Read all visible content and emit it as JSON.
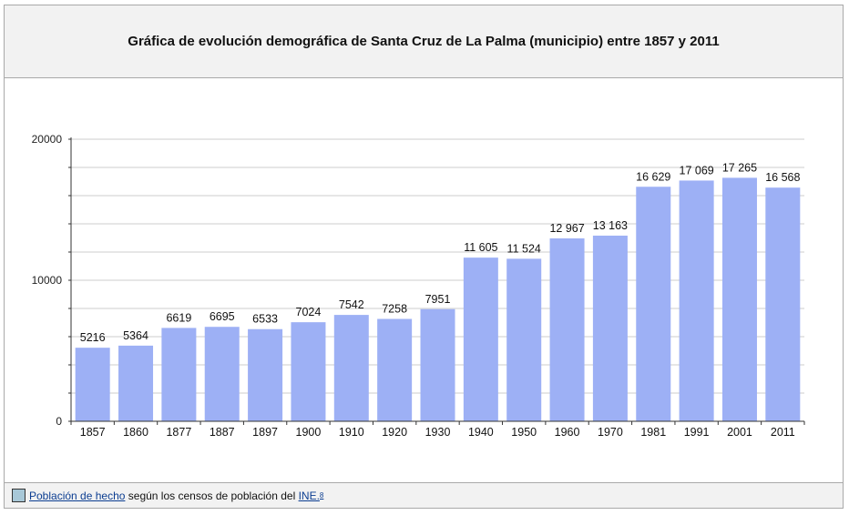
{
  "chart_data": {
    "type": "bar",
    "title": "Gráfica de evolución demográfica de Santa Cruz de La Palma (municipio) entre 1857 y 2011",
    "categories": [
      "1857",
      "1860",
      "1877",
      "1887",
      "1897",
      "1900",
      "1910",
      "1920",
      "1930",
      "1940",
      "1950",
      "1960",
      "1970",
      "1981",
      "1991",
      "2001",
      "2011"
    ],
    "values": [
      5216,
      5364,
      6619,
      6695,
      6533,
      7024,
      7542,
      7258,
      7951,
      11605,
      11524,
      12967,
      13163,
      16629,
      17069,
      17265,
      16568
    ],
    "value_labels": [
      "5216",
      "5364",
      "6619",
      "6695",
      "6533",
      "7024",
      "7542",
      "7258",
      "7951",
      "11 605",
      "11 524",
      "12 967",
      "13 163",
      "16 629",
      "17 069",
      "17 265",
      "16 568"
    ],
    "ylim": [
      0,
      20000
    ],
    "y_ticks": [
      0,
      10000,
      20000
    ],
    "y_tick_labels": [
      "0",
      "10000",
      "20000"
    ],
    "grid": true,
    "bar_color": "#9db0f5",
    "grid_color": "#cccccc"
  },
  "legend": {
    "swatch_color": "#a8c8d8",
    "link_text": "Población de hecho",
    "middle_text": "según los censos de población del",
    "source_link": "INE.",
    "footnote": "8"
  }
}
